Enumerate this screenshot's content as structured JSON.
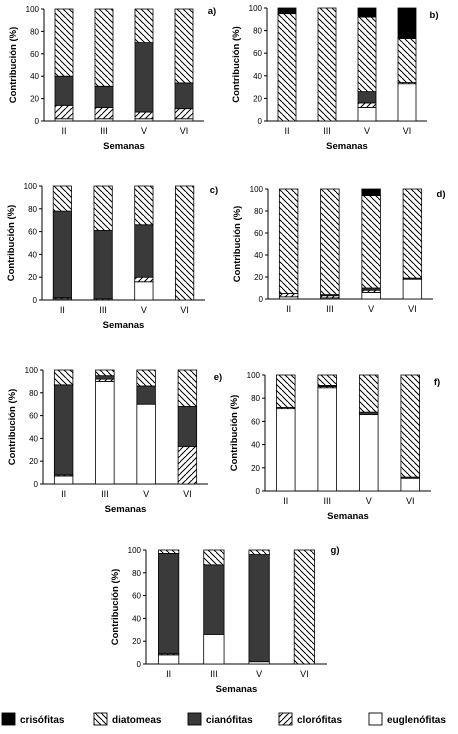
{
  "colors": {
    "crisofitas": "#000000",
    "diatomeas": "hatch-diagonal-back",
    "cianofitas": "#3a3a3a",
    "clorofitas": "hatch-diagonal-forward",
    "euglenofitas": "#ffffff"
  },
  "legend": [
    {
      "key": "crisofitas",
      "label": "crisófitas"
    },
    {
      "key": "diatomeas",
      "label": "diatomeas"
    },
    {
      "key": "cianofitas",
      "label": "cianófitas"
    },
    {
      "key": "clorofitas",
      "label": "clorófitas"
    },
    {
      "key": "euglenofitas",
      "label": "euglenófitas"
    }
  ],
  "chart_data": [
    {
      "type": "bar",
      "stacked": true,
      "panel": "a)",
      "xlabel": "Semanas",
      "ylabel": "Contribución (%)",
      "ylim": [
        0,
        100
      ],
      "yticks": [
        0,
        20,
        40,
        60,
        80,
        100
      ],
      "categories": [
        "II",
        "III",
        "V",
        "VI"
      ],
      "series": [
        {
          "key": "euglenofitas",
          "values": [
            2,
            2,
            2,
            2
          ]
        },
        {
          "key": "clorofitas",
          "values": [
            12,
            10,
            6,
            9
          ]
        },
        {
          "key": "cianofitas",
          "values": [
            26,
            19,
            62,
            23
          ]
        },
        {
          "key": "diatomeas",
          "values": [
            60,
            69,
            30,
            66
          ]
        },
        {
          "key": "crisofitas",
          "values": [
            0,
            0,
            0,
            0
          ]
        }
      ]
    },
    {
      "type": "bar",
      "stacked": true,
      "panel": "b)",
      "xlabel": "Semanas",
      "ylabel": "Contribución (%)",
      "ylim": [
        0,
        100
      ],
      "yticks": [
        0,
        20,
        40,
        60,
        80,
        100
      ],
      "categories": [
        "II",
        "III",
        "V",
        "VI"
      ],
      "series": [
        {
          "key": "euglenofitas",
          "values": [
            0,
            0,
            12,
            33
          ]
        },
        {
          "key": "clorofitas",
          "values": [
            0,
            0,
            4,
            1
          ]
        },
        {
          "key": "cianofitas",
          "values": [
            0,
            0,
            10,
            0
          ]
        },
        {
          "key": "diatomeas",
          "values": [
            95,
            100,
            66,
            39
          ]
        },
        {
          "key": "crisofitas",
          "values": [
            5,
            0,
            8,
            27
          ]
        }
      ]
    },
    {
      "type": "bar",
      "stacked": true,
      "panel": "c)",
      "xlabel": "Semanas",
      "ylabel": "Contribución (%)",
      "ylim": [
        0,
        100
      ],
      "yticks": [
        0,
        20,
        40,
        60,
        80,
        100
      ],
      "categories": [
        "II",
        "III",
        "V",
        "VI"
      ],
      "series": [
        {
          "key": "euglenofitas",
          "values": [
            1,
            0,
            16,
            0
          ]
        },
        {
          "key": "clorofitas",
          "values": [
            1,
            1,
            4,
            0
          ]
        },
        {
          "key": "cianofitas",
          "values": [
            76,
            60,
            46,
            0
          ]
        },
        {
          "key": "diatomeas",
          "values": [
            22,
            39,
            34,
            100
          ]
        },
        {
          "key": "crisofitas",
          "values": [
            0,
            0,
            0,
            0
          ]
        }
      ]
    },
    {
      "type": "bar",
      "stacked": true,
      "panel": "d)",
      "xlabel": "",
      "ylabel": "Contribución (%)",
      "ylim": [
        0,
        100
      ],
      "yticks": [
        0,
        20,
        40,
        60,
        80,
        100
      ],
      "categories": [
        "II",
        "III",
        "V",
        "VI"
      ],
      "series": [
        {
          "key": "euglenofitas",
          "values": [
            2,
            1,
            6,
            18
          ]
        },
        {
          "key": "clorofitas",
          "values": [
            3,
            2,
            2,
            0
          ]
        },
        {
          "key": "cianofitas",
          "values": [
            0,
            1,
            2,
            1
          ]
        },
        {
          "key": "diatomeas",
          "values": [
            95,
            96,
            84,
            81
          ]
        },
        {
          "key": "crisofitas",
          "values": [
            0,
            0,
            6,
            0
          ]
        }
      ]
    },
    {
      "type": "bar",
      "stacked": true,
      "panel": "e)",
      "xlabel": "Semanas",
      "ylabel": "Contribución (%)",
      "ylim": [
        0,
        100
      ],
      "yticks": [
        0,
        20,
        40,
        60,
        80,
        100
      ],
      "categories": [
        "II",
        "III",
        "V",
        "VI"
      ],
      "series": [
        {
          "key": "euglenofitas",
          "values": [
            7,
            90,
            70,
            0
          ]
        },
        {
          "key": "clorofitas",
          "values": [
            1,
            2,
            0,
            33
          ]
        },
        {
          "key": "cianofitas",
          "values": [
            79,
            3,
            16,
            35
          ]
        },
        {
          "key": "diatomeas",
          "values": [
            13,
            5,
            14,
            32
          ]
        },
        {
          "key": "crisofitas",
          "values": [
            0,
            0,
            0,
            0
          ]
        }
      ]
    },
    {
      "type": "bar",
      "stacked": true,
      "panel": "f)",
      "xlabel": "Semanas",
      "ylabel": "Contribución (%)",
      "ylim": [
        0,
        100
      ],
      "yticks": [
        0,
        20,
        40,
        60,
        80,
        100
      ],
      "categories": [
        "II",
        "III",
        "V",
        "VI"
      ],
      "series": [
        {
          "key": "euglenofitas",
          "values": [
            71,
            89,
            66,
            11
          ]
        },
        {
          "key": "clorofitas",
          "values": [
            1,
            1,
            0,
            0
          ]
        },
        {
          "key": "cianofitas",
          "values": [
            0,
            1,
            2,
            1
          ]
        },
        {
          "key": "diatomeas",
          "values": [
            28,
            9,
            32,
            88
          ]
        },
        {
          "key": "crisofitas",
          "values": [
            0,
            0,
            0,
            0
          ]
        }
      ]
    },
    {
      "type": "bar",
      "stacked": true,
      "panel": "g)",
      "xlabel": "Semanas",
      "ylabel": "Contribución (%)",
      "ylim": [
        0,
        100
      ],
      "yticks": [
        0,
        20,
        40,
        60,
        80,
        100
      ],
      "categories": [
        "II",
        "III",
        "V",
        "VI"
      ],
      "series": [
        {
          "key": "euglenofitas",
          "values": [
            8,
            26,
            2,
            0
          ]
        },
        {
          "key": "clorofitas",
          "values": [
            1,
            0,
            0,
            0
          ]
        },
        {
          "key": "cianofitas",
          "values": [
            88,
            61,
            94,
            0
          ]
        },
        {
          "key": "diatomeas",
          "values": [
            3,
            13,
            4,
            100
          ]
        },
        {
          "key": "crisofitas",
          "values": [
            0,
            0,
            0,
            0
          ]
        }
      ]
    }
  ]
}
